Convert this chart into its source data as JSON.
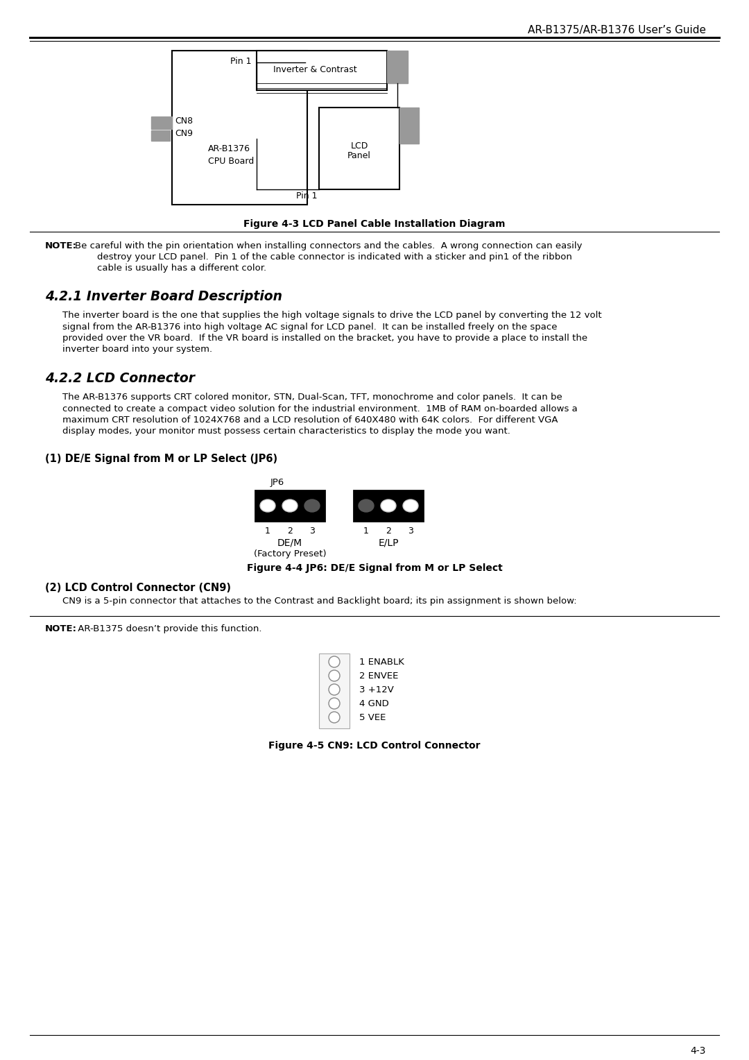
{
  "header_title": "AR-B1375/AR-B1376 User’s Guide",
  "page_number": "4-3",
  "fig3_caption": "Figure 4-3 LCD Panel Cable Installation Diagram",
  "note1_bold": "NOTE:",
  "note1_line1": "Be careful with the pin orientation when installing connectors and the cables.  A wrong connection can easily",
  "note1_line2": "destroy your LCD panel.  Pin 1 of the cable connector is indicated with a sticker and pin1 of the ribbon",
  "note1_line3": "cable is usually has a different color.",
  "section421_title": "4.2.1 Inverter Board Description",
  "section421_lines": [
    "The inverter board is the one that supplies the high voltage signals to drive the LCD panel by converting the 12 volt",
    "signal from the AR-B1376 into high voltage AC signal for LCD panel.  It can be installed freely on the space",
    "provided over the VR board.  If the VR board is installed on the bracket, you have to provide a place to install the",
    "inverter board into your system."
  ],
  "section422_title": "4.2.2 LCD Connector",
  "section422_lines": [
    "The AR-B1376 supports CRT colored monitor, STN, Dual-Scan, TFT, monochrome and color panels.  It can be",
    "connected to create a compact video solution for the industrial environment.  1MB of RAM on-boarded allows a",
    "maximum CRT resolution of 1024X768 and a LCD resolution of 640X480 with 64K colors.  For different VGA",
    "display modes, your monitor must possess certain characteristics to display the mode you want."
  ],
  "subsec1_title": "(1) DE/E Signal from M or LP Select (JP6)",
  "jp6_label": "JP6",
  "dem_label": "DE/M",
  "elp_label": "E/LP",
  "factory_preset": "(Factory Preset)",
  "fig4_caption": "Figure 4-4 JP6: DE/E Signal from M or LP Select",
  "subsec2_title": "(2) LCD Control Connector (CN9)",
  "subsec2_body": "CN9 is a 5-pin connector that attaches to the Contrast and Backlight board; its pin assignment is shown below:",
  "note2_bold": "NOTE:",
  "note2_text": " AR-B1375 doesn’t provide this function.",
  "pin_labels": [
    "1 ENABLK",
    "2 ENVEE",
    "3 +12V",
    "4 GND",
    "5 VEE"
  ],
  "fig5_caption": "Figure 4-5 CN9: LCD Control Connector",
  "bg_color": "#ffffff",
  "text_color": "#000000",
  "gray_color": "#999999"
}
